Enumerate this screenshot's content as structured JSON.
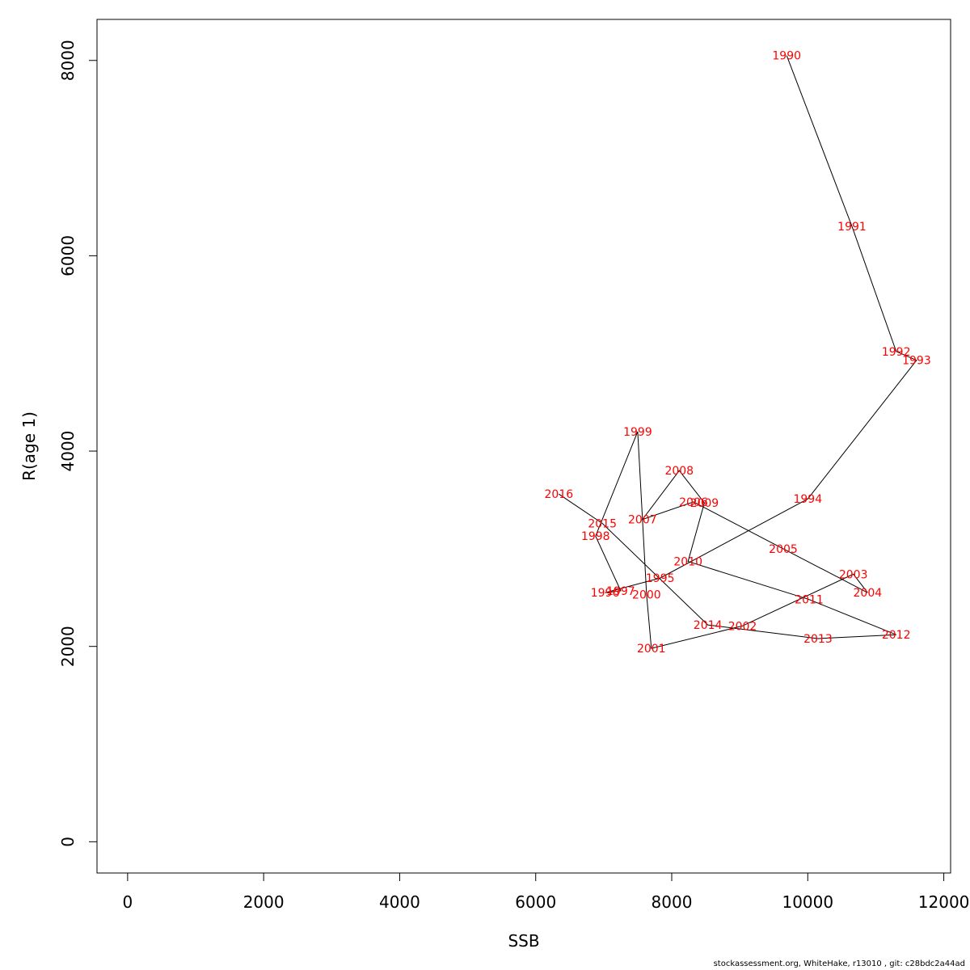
{
  "chart_data": {
    "type": "line",
    "title": "",
    "xlabel": "SSB",
    "ylabel": "R(age 1)",
    "xlim": [
      -450,
      12100
    ],
    "ylim": [
      -320,
      8420
    ],
    "x_ticks": [
      0,
      2000,
      4000,
      6000,
      8000,
      10000,
      12000
    ],
    "y_ticks": [
      0,
      2000,
      4000,
      6000,
      8000
    ],
    "grid": false,
    "label_color": "#ff0000",
    "line_color": "#000000",
    "points": [
      {
        "year": "1990",
        "x": 9690,
        "y": 8050
      },
      {
        "year": "1991",
        "x": 10650,
        "y": 6300
      },
      {
        "year": "1992",
        "x": 11300,
        "y": 5020
      },
      {
        "year": "1993",
        "x": 11600,
        "y": 4930
      },
      {
        "year": "1994",
        "x": 10000,
        "y": 3510
      },
      {
        "year": "1995",
        "x": 7830,
        "y": 2700
      },
      {
        "year": "1996",
        "x": 7020,
        "y": 2550
      },
      {
        "year": "1997",
        "x": 7250,
        "y": 2570
      },
      {
        "year": "1998",
        "x": 6880,
        "y": 3130
      },
      {
        "year": "1999",
        "x": 7500,
        "y": 4200
      },
      {
        "year": "2000",
        "x": 7630,
        "y": 2530
      },
      {
        "year": "2001",
        "x": 7700,
        "y": 1980
      },
      {
        "year": "2002",
        "x": 9040,
        "y": 2210
      },
      {
        "year": "2003",
        "x": 10670,
        "y": 2740
      },
      {
        "year": "2004",
        "x": 10880,
        "y": 2550
      },
      {
        "year": "2005",
        "x": 9640,
        "y": 3000
      },
      {
        "year": "2006",
        "x": 8320,
        "y": 3480
      },
      {
        "year": "2007",
        "x": 7570,
        "y": 3300
      },
      {
        "year": "2008",
        "x": 8110,
        "y": 3800
      },
      {
        "year": "2009",
        "x": 8480,
        "y": 3470
      },
      {
        "year": "2010",
        "x": 8240,
        "y": 2870
      },
      {
        "year": "2011",
        "x": 10020,
        "y": 2480
      },
      {
        "year": "2012",
        "x": 11300,
        "y": 2120
      },
      {
        "year": "2013",
        "x": 10150,
        "y": 2080
      },
      {
        "year": "2014",
        "x": 8530,
        "y": 2220
      },
      {
        "year": "2015",
        "x": 6980,
        "y": 3260
      },
      {
        "year": "2016",
        "x": 6340,
        "y": 3560
      }
    ]
  },
  "footer": {
    "text": "stockassessment.org, WhiteHake, r13010 , git: c28bdc2a44ad"
  }
}
